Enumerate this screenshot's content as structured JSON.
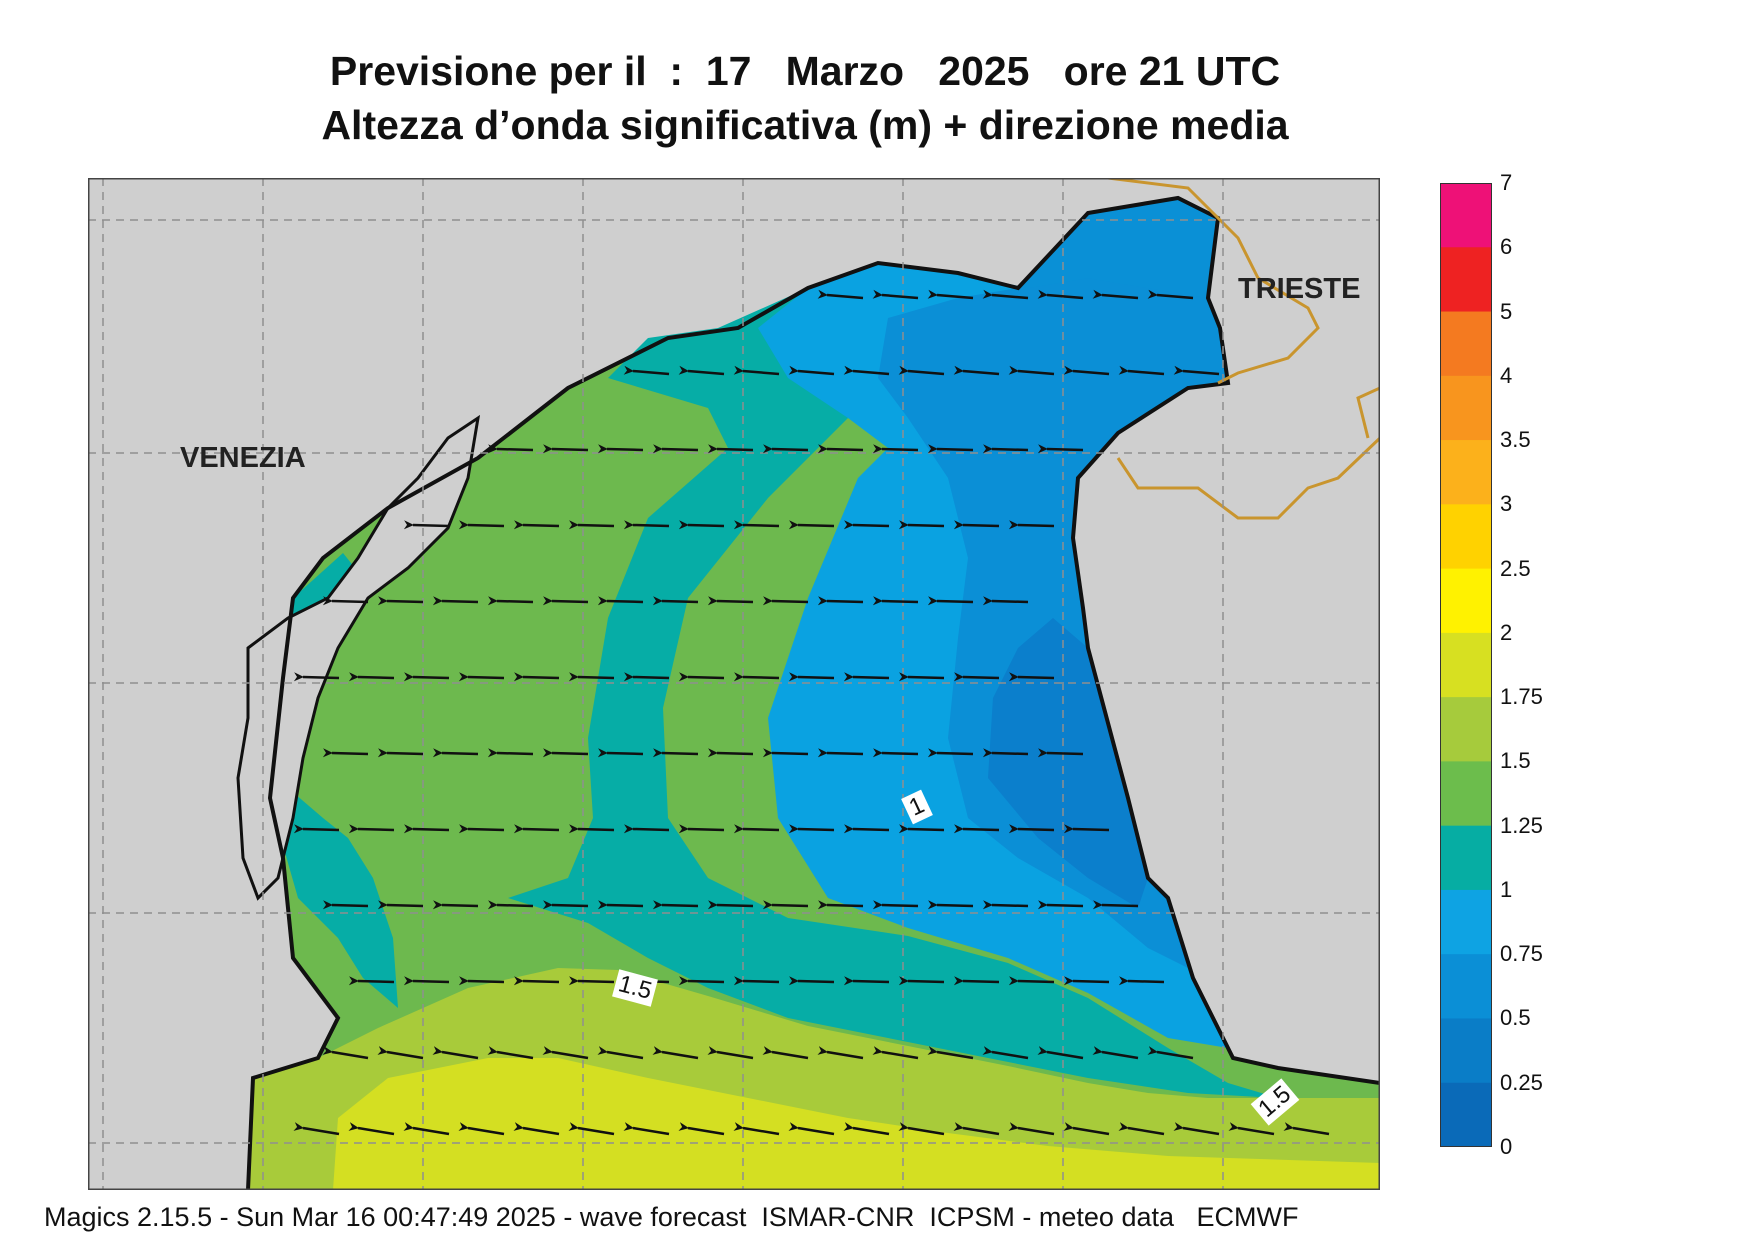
{
  "title": {
    "line1": "Previsione per il  :  17   Marzo   2025   ore 21 UTC",
    "line2": "Altezza d’onda significativa (m) + direzione media"
  },
  "cities": {
    "venezia": "VENEZIA",
    "trieste": "TRIESTE"
  },
  "contour_labels": {
    "one": "1",
    "one_five_a": "1.5",
    "one_five_b": "1.5"
  },
  "colors": {
    "land": "#cfcfcf",
    "band_0_25": "#0a63b8",
    "band_0_5": "#0b7fcc",
    "band_0_75": "#0a90d6",
    "band_1": "#0aa2e1",
    "band_1_25": "#06ada6",
    "band_1_5": "#6db94e",
    "band_1_75": "#a8cb3a",
    "band_2": "#d4df22",
    "border": "#c9952e"
  },
  "colorbar": {
    "ticks": [
      "7",
      "6",
      "5",
      "4",
      "3.5",
      "3",
      "2.5",
      "2",
      "1.75",
      "1.5",
      "1.25",
      "1",
      "0.75",
      "0.5",
      "0.25",
      "0"
    ],
    "colors": [
      "#ee1177",
      "#ee2222",
      "#f47a20",
      "#f8951e",
      "#fcb11b",
      "#ffd200",
      "#fff200",
      "#d7e021",
      "#a6cb3c",
      "#6cbd4c",
      "#06ada3",
      "#0ea3e3",
      "#0b8fd6",
      "#0a7dc7",
      "#0a6ab8"
    ]
  },
  "footer": "Magics 2.15.5 - Sun Mar 16 00:47:49 2025 - wave forecast  ISMAR-CNR  ICPSM - meteo data   ECMWF"
}
